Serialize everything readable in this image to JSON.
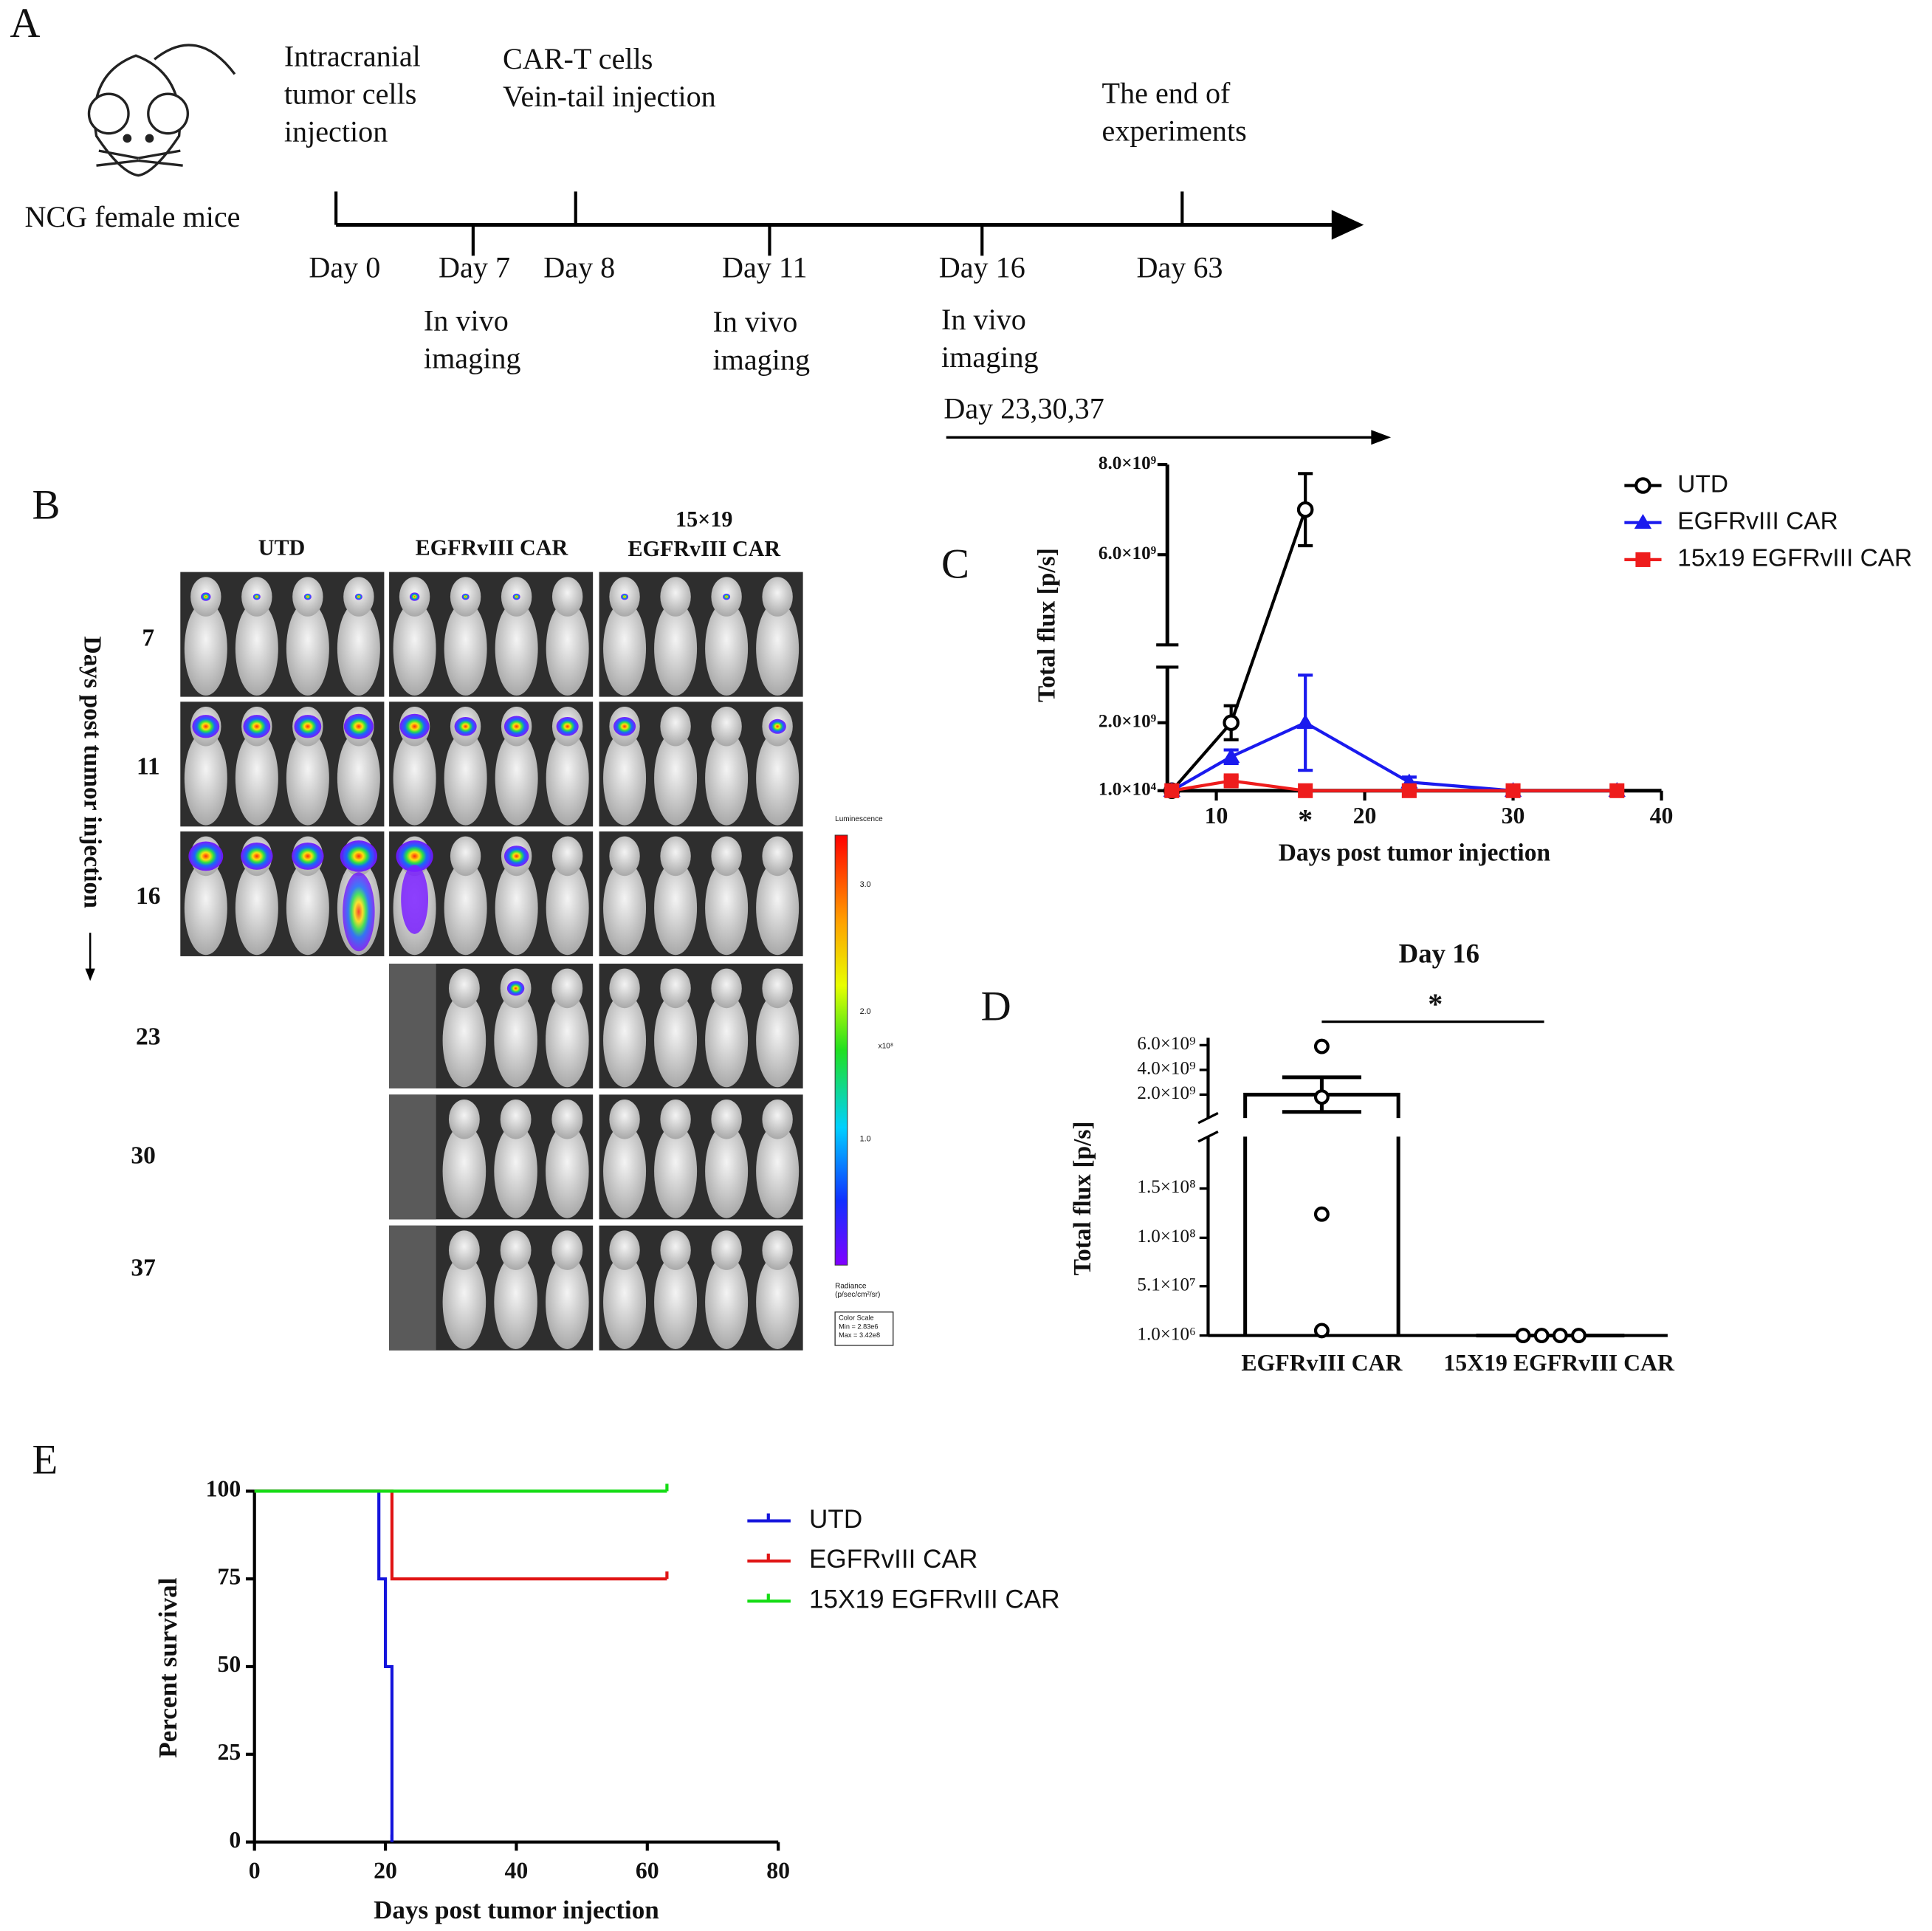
{
  "panel_labels": [
    "A",
    "B",
    "C",
    "D",
    "E"
  ],
  "timeline": {
    "mouse_label": "NCG female mice",
    "events": [
      {
        "day": "Day 0",
        "note": [
          "Intracranial",
          "tumor cells",
          "injection"
        ]
      },
      {
        "day": "Day 7",
        "note": [
          "In vivo",
          "imaging"
        ]
      },
      {
        "day": "Day 8",
        "note": [
          "CAR-T cells",
          "Vein-tail injection"
        ]
      },
      {
        "day": "Day 11",
        "note": [
          "In vivo",
          "imaging"
        ]
      },
      {
        "day": "Day 16",
        "note": [
          "In vivo",
          "imaging"
        ]
      },
      {
        "day": "Day 63",
        "note": [
          "The end of",
          "experiments"
        ]
      }
    ],
    "followup": "Day 23,30,37"
  },
  "imaging": {
    "columns": [
      [
        "UTD"
      ],
      [
        "EGFRvIII CAR"
      ],
      [
        "15×19",
        "EGFRvIII CAR"
      ]
    ],
    "rows": [
      "7",
      "11",
      "16",
      "23",
      "30",
      "37"
    ],
    "axis_label": "Days post tumor injection",
    "colorbar": {
      "title": "Luminescence",
      "ticks": [
        "3.0",
        "2.0",
        "1.0"
      ],
      "unit": "x10⁸",
      "radiance": [
        "Radiance",
        "(p/sec/cm²/sr)"
      ],
      "scale": [
        "Color Scale",
        "Min = 2.83e6",
        "Max = 3.42e8"
      ]
    }
  },
  "chart_data": [
    {
      "type": "line",
      "xlabel": "Days post tumor injection",
      "ylabel": "Total flux [p/s]",
      "xlim": [
        6.7,
        40
      ],
      "xticks": [
        10,
        20,
        30,
        40
      ],
      "yticks": [
        {
          "value": 10000,
          "label": "1.0×10⁴"
        },
        {
          "value": 2000000000,
          "label": "2.0×10⁹"
        },
        {
          "value": 6000000000,
          "label": "6.0×10⁹"
        },
        {
          "value": 8000000000,
          "label": "8.0×10⁹"
        }
      ],
      "ylim": [
        10000,
        8000000000
      ],
      "broken_axis": true,
      "legend": "upper right",
      "annotations": [
        {
          "x": 16,
          "text": "*"
        }
      ],
      "series": [
        {
          "name": "UTD",
          "color": "#000000",
          "marker": "circle",
          "x": [
            7,
            11,
            16
          ],
          "values": [
            10000,
            2000000000,
            7000000000
          ],
          "errors": [
            0,
            500000000,
            800000000
          ]
        },
        {
          "name": "EGFRvIII CAR",
          "color": "#1a1aee",
          "marker": "triangle",
          "x": [
            7,
            11,
            16,
            23,
            30,
            37
          ],
          "values": [
            10000,
            1000000000,
            2000000000,
            250000000,
            10000,
            10000
          ],
          "errors": [
            0,
            200000000,
            1400000000,
            150000000,
            0,
            0
          ]
        },
        {
          "name": "15x19 EGFRvIII CAR",
          "color": "#ee1c1c",
          "marker": "square",
          "x": [
            7,
            11,
            16,
            23,
            30,
            37
          ],
          "values": [
            10000,
            290000000,
            10000,
            10000,
            10000,
            10000
          ],
          "errors": [
            0,
            120000000,
            0,
            0,
            0,
            0
          ]
        }
      ]
    },
    {
      "type": "bar",
      "title": "Day 16",
      "ylabel": "Total flux [p/s]",
      "categories": [
        "EGFRvIII CAR",
        "15X19 EGFRvIII CAR"
      ],
      "values": [
        2000000000,
        1000000
      ],
      "errors": [
        1400000000,
        0
      ],
      "points": [
        [
          5900000000,
          1800000000,
          124000000,
          6000000
        ],
        [
          1000000,
          1000000,
          1000000,
          1000000
        ]
      ],
      "ylim": [
        1000000,
        6000000000
      ],
      "broken_axis": true,
      "yticks": [
        {
          "value": 1000000,
          "label": "1.0×10⁶"
        },
        {
          "value": 51000000,
          "label": "5.1×10⁷"
        },
        {
          "value": 100000000,
          "label": "1.0×10⁸"
        },
        {
          "value": 150000000,
          "label": "1.5×10⁸"
        },
        {
          "value": 2000000000,
          "label": "2.0×10⁹"
        },
        {
          "value": 4000000000,
          "label": "4.0×10⁹"
        },
        {
          "value": 6000000000,
          "label": "6.0×10⁹"
        }
      ],
      "annotation": "*"
    },
    {
      "type": "step",
      "xlabel": "Days post tumor injection",
      "ylabel": "Percent survival",
      "xlim": [
        0,
        80
      ],
      "xticks": [
        0,
        20,
        40,
        60,
        80
      ],
      "ylim": [
        0,
        100
      ],
      "yticks": [
        0,
        25,
        50,
        75,
        100
      ],
      "legend": "upper right",
      "series": [
        {
          "name": "UTD",
          "color": "#1414dc",
          "x": [
            0,
            19,
            20,
            21
          ],
          "values": [
            100,
            75,
            50,
            0
          ]
        },
        {
          "name": "EGFRvIII CAR",
          "color": "#e01414",
          "x": [
            0,
            21,
            63
          ],
          "values": [
            100,
            75,
            75
          ]
        },
        {
          "name": "15X19 EGFRvIII CAR",
          "color": "#14dc14",
          "x": [
            0,
            63
          ],
          "values": [
            100,
            100
          ]
        }
      ]
    }
  ]
}
